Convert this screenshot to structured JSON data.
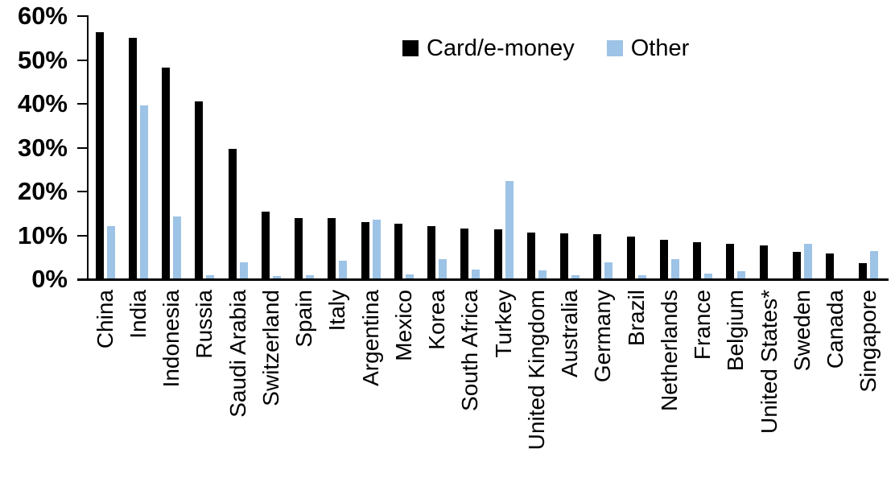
{
  "chart_data": {
    "type": "bar",
    "title": "",
    "xlabel": "",
    "ylabel": "",
    "categories": [
      "China",
      "India",
      "Indonesia",
      "Russia",
      "Saudi Arabia",
      "Switzerland",
      "Spain",
      "Italy",
      "Argentina",
      "Mexico",
      "Korea",
      "South Africa",
      "Turkey",
      "United Kingdom",
      "Australia",
      "Germany",
      "Brazil",
      "Netherlands",
      "France",
      "Belgium",
      "United States*",
      "Sweden",
      "Canada",
      "Singapore"
    ],
    "series": [
      {
        "name": "Card/e-money",
        "color": "#000000",
        "values": [
          56.3,
          55.0,
          48.3,
          40.5,
          29.8,
          15.4,
          14.0,
          13.9,
          13.1,
          12.7,
          12.1,
          11.5,
          11.3,
          10.7,
          10.5,
          10.3,
          9.8,
          9.0,
          8.5,
          8.0,
          7.7,
          6.3,
          5.8,
          3.6
        ]
      },
      {
        "name": "Other",
        "color": "#9dc3e6",
        "values": [
          12.2,
          39.7,
          14.3,
          1.0,
          3.9,
          0.7,
          1.0,
          4.3,
          13.6,
          1.1,
          4.5,
          2.2,
          22.3,
          2.1,
          0.9,
          3.8,
          1.0,
          4.6,
          1.3,
          1.9,
          0.2,
          8.0,
          0.0,
          6.4
        ]
      }
    ],
    "ylim": [
      0,
      60
    ],
    "y_tick_labels": [
      "0%",
      "10%",
      "20%",
      "30%",
      "40%",
      "50%",
      "60%"
    ],
    "grid": "off",
    "legend_position": "top-center",
    "bar_orientation": "vertical",
    "x_label_rotation": 90
  }
}
